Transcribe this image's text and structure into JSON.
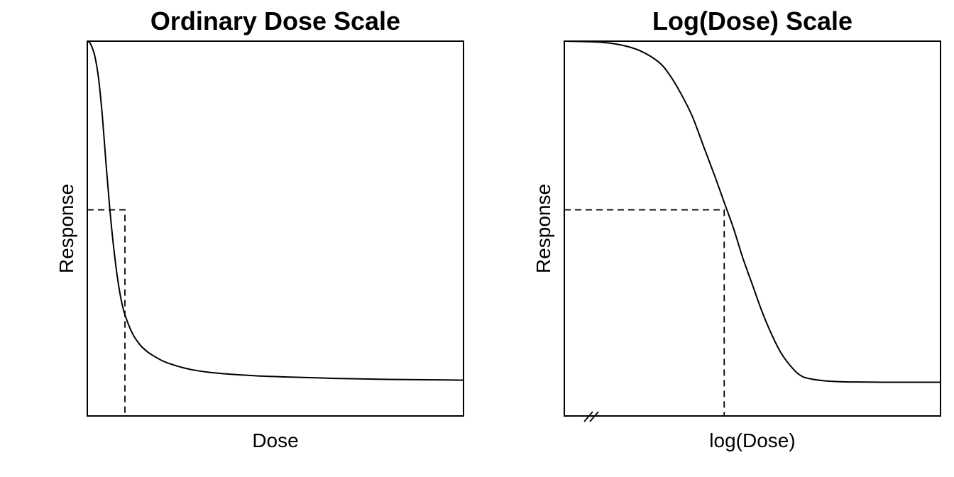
{
  "chart_data": [
    {
      "type": "line",
      "title": "Ordinary Dose Scale",
      "xlabel": "Dose",
      "ylabel": "Response",
      "xlim": [
        0,
        1
      ],
      "ylim": [
        0,
        1
      ],
      "grid": false,
      "axis_ticks": false,
      "series": [
        {
          "x": [
            0.0,
            0.005,
            0.01,
            0.02,
            0.03,
            0.04,
            0.05,
            0.06,
            0.07,
            0.08,
            0.09,
            0.1,
            0.12,
            0.14,
            0.16,
            0.18,
            0.2,
            0.22,
            0.25,
            0.28,
            0.32,
            0.36,
            0.4,
            0.45,
            0.5,
            0.55,
            0.6,
            0.65,
            0.7,
            0.75,
            0.8,
            0.85,
            0.9,
            0.95,
            1.0
          ],
          "y": [
            1.0,
            0.997,
            0.99,
            0.96,
            0.9,
            0.8,
            0.67,
            0.55,
            0.45,
            0.37,
            0.31,
            0.27,
            0.22,
            0.19,
            0.171,
            0.158,
            0.147,
            0.139,
            0.13,
            0.123,
            0.117,
            0.113,
            0.11,
            0.107,
            0.105,
            0.1035,
            0.102,
            0.1005,
            0.0995,
            0.0985,
            0.0975,
            0.097,
            0.0965,
            0.096,
            0.0955
          ]
        }
      ],
      "reference_point": {
        "x": 0.1,
        "y": 0.55
      }
    },
    {
      "type": "line",
      "title": "Log(Dose) Scale",
      "xlabel": "log(Dose)",
      "ylabel": "Response",
      "xlim": [
        0,
        1
      ],
      "ylim": [
        0,
        1
      ],
      "grid": false,
      "axis_ticks": false,
      "axis_break": "left",
      "series": [
        {
          "x": [
            0.0,
            0.05,
            0.1,
            0.15,
            0.2,
            0.25,
            0.28,
            0.31,
            0.34,
            0.37,
            0.4,
            0.425,
            0.45,
            0.475,
            0.5,
            0.525,
            0.55,
            0.575,
            0.6,
            0.625,
            0.65,
            0.7,
            0.75,
            0.8,
            0.85,
            0.9,
            0.95,
            1.0
          ],
          "y": [
            1.0,
            0.999,
            0.997,
            0.99,
            0.975,
            0.945,
            0.91,
            0.86,
            0.8,
            0.72,
            0.64,
            0.57,
            0.5,
            0.42,
            0.35,
            0.28,
            0.22,
            0.17,
            0.135,
            0.11,
            0.1,
            0.093,
            0.091,
            0.0905,
            0.09,
            0.09,
            0.09,
            0.09
          ]
        }
      ],
      "reference_point": {
        "x": 0.425,
        "y": 0.55
      }
    }
  ]
}
